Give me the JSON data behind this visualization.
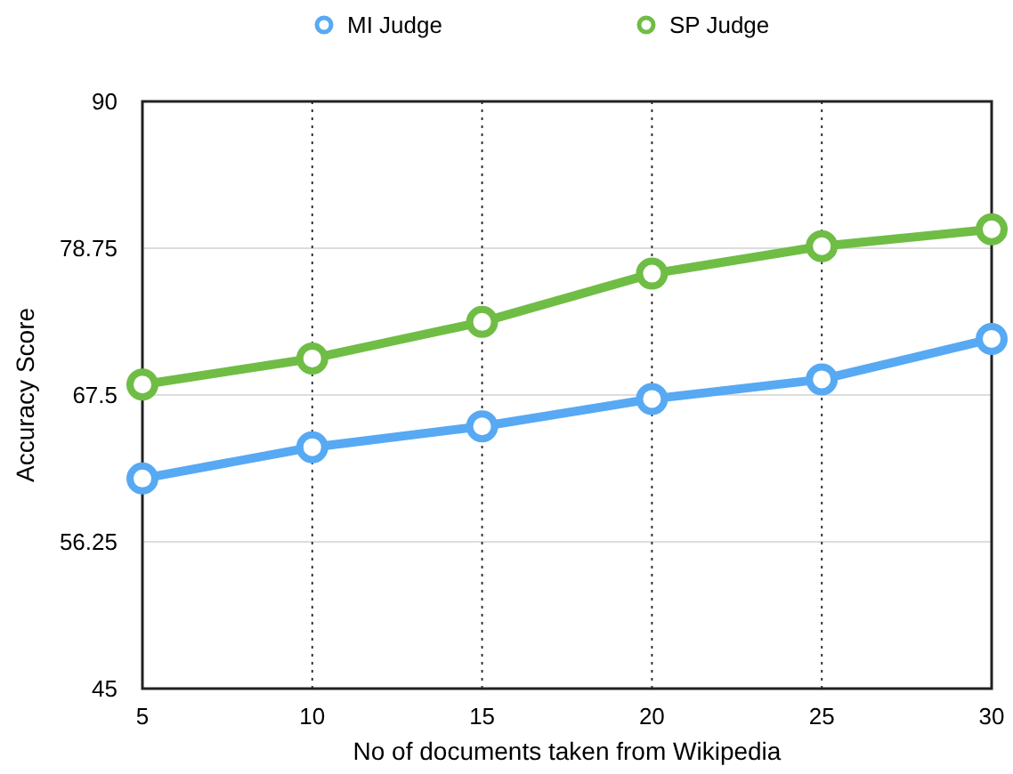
{
  "chart_data": {
    "type": "line",
    "xlabel": "No of documents taken from Wikipedia",
    "ylabel": "Accuracy Score",
    "x": [
      5,
      10,
      15,
      20,
      25,
      30
    ],
    "series": [
      {
        "name": "MI Judge",
        "color": "#57a9f3",
        "values": [
          61.1,
          63.5,
          65.1,
          67.2,
          68.7,
          71.8
        ]
      },
      {
        "name": "SP Judge",
        "color": "#6fbd45",
        "values": [
          68.3,
          70.3,
          73.1,
          76.8,
          78.9,
          80.2
        ]
      }
    ],
    "xlim": [
      5,
      30
    ],
    "xticks": [
      5,
      10,
      15,
      20,
      25,
      30
    ],
    "ylim": [
      45,
      90
    ],
    "yticks": [
      45,
      56.25,
      67.5,
      78.75,
      90
    ],
    "grid": true,
    "legend": "top",
    "marker": "circle",
    "line_style": "solid"
  }
}
